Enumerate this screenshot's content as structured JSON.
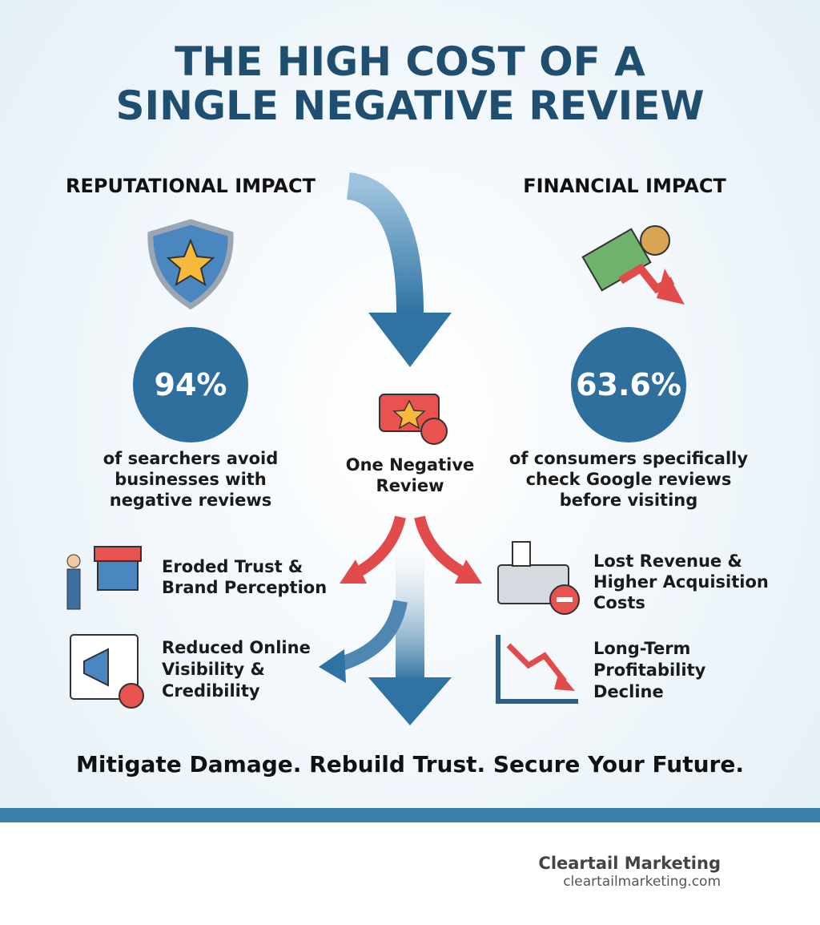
{
  "header": {
    "title_lines": [
      "THE HIGH COST OF A",
      "SINGLE NEGATIVE REVIEW"
    ]
  },
  "columns": [
    {
      "heading": "REPUTATIONAL IMPACT",
      "stat": "94%",
      "stat_text_lines": [
        "of searchers avoid",
        "businesses with",
        "negative reviews"
      ],
      "items": [
        {
          "lines": [
            "Eroded Trust &",
            "Brand Perception"
          ]
        },
        {
          "lines": [
            "Reduced Online",
            "Visibility &",
            "Credibility"
          ]
        }
      ]
    },
    {
      "heading": "FINANCIAL IMPACT",
      "stat": "63.6%",
      "stat_text_lines": [
        "of consumers specifically",
        "check Google reviews",
        "before visiting"
      ],
      "items": [
        {
          "lines": [
            "Lost Revenue &",
            "Higher Acquisition",
            "Costs"
          ]
        },
        {
          "lines": [
            "Long-Term",
            "Profitability",
            "Decline"
          ]
        }
      ]
    }
  ],
  "center": {
    "label_lines": [
      "One Negative",
      "Review"
    ]
  },
  "tagline": "Mitigate Damage. Rebuild Trust. Secure Your Future.",
  "footer": {
    "brand": "Cleartail Marketing",
    "url": "cleartailmarketing.com"
  }
}
